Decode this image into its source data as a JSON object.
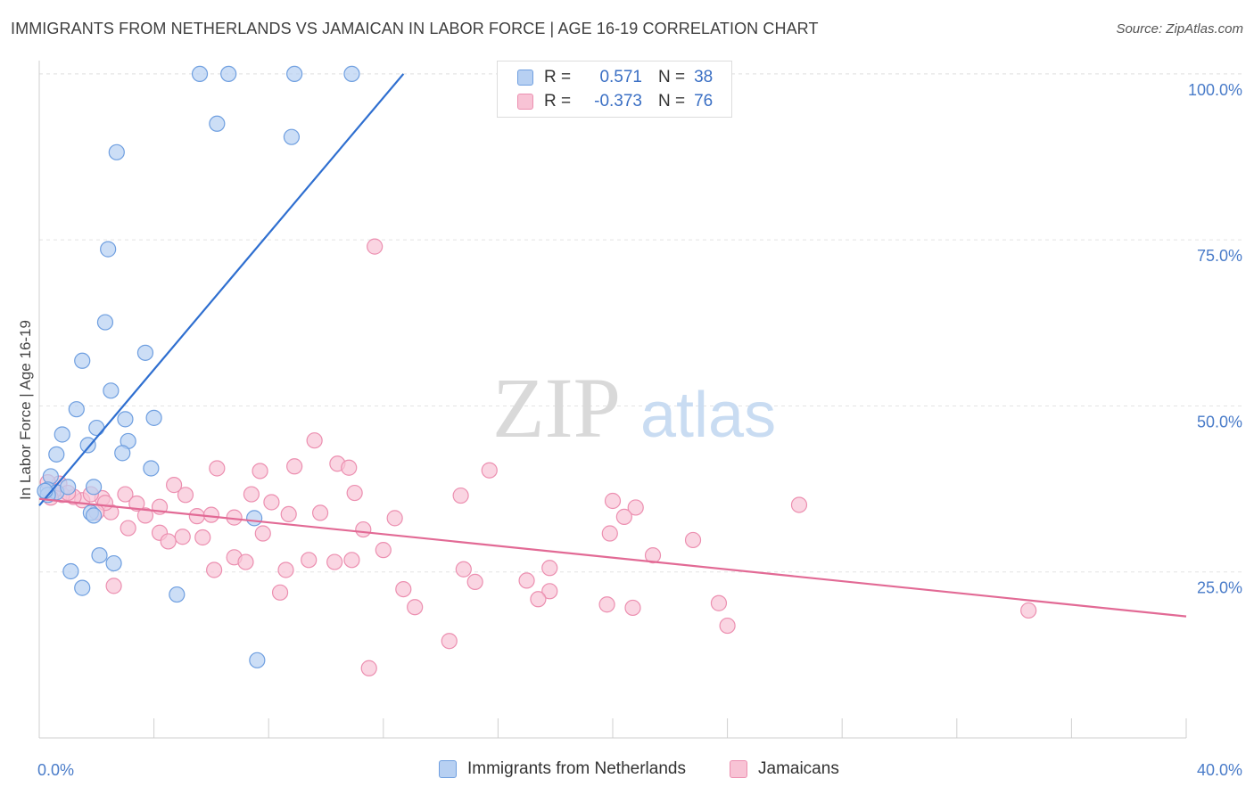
{
  "title": "IMMIGRANTS FROM NETHERLANDS VS JAMAICAN IN LABOR FORCE | AGE 16-19 CORRELATION CHART",
  "source": "Source: ZipAtlas.com",
  "watermark": {
    "part1": "ZIP",
    "part2": "atlas"
  },
  "legend": {
    "r_label": "R =",
    "n_label": "N =",
    "rows": [
      {
        "r": "0.571",
        "n": "38",
        "swatch_fill": "#b7d0f2",
        "swatch_stroke": "#6f9fe0"
      },
      {
        "r": "-0.373",
        "n": "76",
        "swatch_fill": "#f8c3d5",
        "swatch_stroke": "#ec8fb0"
      }
    ]
  },
  "colors": {
    "blue_fill": "#b7d0f2",
    "blue_stroke": "#6f9fe0",
    "blue_line": "#2f6fd0",
    "pink_fill": "#f8c3d5",
    "pink_stroke": "#ec8fb0",
    "pink_line": "#e26a95",
    "grid": "#e3e3e3",
    "tick_label": "#4a7cc9"
  },
  "chart_data": {
    "type": "scatter",
    "title": "IMMIGRANTS FROM NETHERLANDS VS JAMAICAN IN LABOR FORCE | AGE 16-19 CORRELATION CHART",
    "xlabel": "",
    "ylabel": "In Labor Force | Age 16-19",
    "xlim": [
      0,
      40
    ],
    "ylim": [
      0,
      102
    ],
    "x_tick_labels": [
      {
        "value": 0,
        "label": "0.0%"
      },
      {
        "value": 40,
        "label": "40.0%"
      }
    ],
    "x_minor_ticks": [
      0,
      4,
      8,
      12,
      16,
      20,
      24,
      28,
      32,
      36,
      40
    ],
    "y_ticks": [
      {
        "value": 25,
        "label": "25.0%"
      },
      {
        "value": 50,
        "label": "50.0%"
      },
      {
        "value": 75,
        "label": "75.0%"
      },
      {
        "value": 100,
        "label": "100.0%"
      }
    ],
    "grid": true,
    "legend_placement": "top-center",
    "series": [
      {
        "name": "Immigrants from Netherlands",
        "r": 0.571,
        "n": 38,
        "trend": {
          "x0": 0.0,
          "y0": 35.0,
          "x1": 12.7,
          "y1": 100.0
        },
        "points": [
          [
            5.6,
            100.0
          ],
          [
            6.6,
            100.0
          ],
          [
            8.9,
            100.0
          ],
          [
            10.9,
            100.0
          ],
          [
            6.2,
            92.5
          ],
          [
            8.8,
            90.5
          ],
          [
            2.7,
            88.2
          ],
          [
            2.4,
            73.6
          ],
          [
            2.3,
            62.6
          ],
          [
            3.7,
            58.0
          ],
          [
            1.5,
            56.8
          ],
          [
            2.5,
            52.3
          ],
          [
            1.3,
            49.5
          ],
          [
            3.0,
            48.0
          ],
          [
            4.0,
            48.2
          ],
          [
            0.8,
            45.7
          ],
          [
            2.0,
            46.7
          ],
          [
            1.7,
            44.1
          ],
          [
            3.1,
            44.7
          ],
          [
            0.6,
            42.7
          ],
          [
            2.9,
            42.9
          ],
          [
            3.9,
            40.6
          ],
          [
            0.4,
            39.4
          ],
          [
            0.3,
            37.4
          ],
          [
            0.6,
            37.0
          ],
          [
            1.0,
            37.8
          ],
          [
            1.9,
            37.8
          ],
          [
            0.3,
            36.6
          ],
          [
            0.2,
            37.2
          ],
          [
            1.8,
            33.9
          ],
          [
            1.9,
            33.5
          ],
          [
            7.5,
            33.1
          ],
          [
            2.1,
            27.5
          ],
          [
            2.6,
            26.3
          ],
          [
            1.1,
            25.1
          ],
          [
            1.5,
            22.6
          ],
          [
            4.8,
            21.6
          ],
          [
            7.6,
            11.7
          ]
        ]
      },
      {
        "name": "Jamaicans",
        "r": -0.373,
        "n": 76,
        "trend": {
          "x0": 0.0,
          "y0": 36.0,
          "x1": 40.0,
          "y1": 18.3
        },
        "points": [
          [
            11.7,
            74.0
          ],
          [
            9.6,
            44.8
          ],
          [
            10.4,
            41.3
          ],
          [
            10.8,
            40.7
          ],
          [
            8.9,
            40.9
          ],
          [
            7.7,
            40.2
          ],
          [
            6.2,
            40.6
          ],
          [
            15.7,
            40.3
          ],
          [
            4.7,
            38.1
          ],
          [
            5.1,
            36.6
          ],
          [
            7.4,
            36.7
          ],
          [
            8.1,
            35.5
          ],
          [
            11.0,
            36.9
          ],
          [
            14.7,
            36.5
          ],
          [
            20.0,
            35.7
          ],
          [
            26.5,
            35.1
          ],
          [
            3.0,
            36.7
          ],
          [
            3.4,
            35.3
          ],
          [
            4.2,
            34.8
          ],
          [
            3.7,
            33.5
          ],
          [
            2.5,
            34.0
          ],
          [
            1.5,
            35.8
          ],
          [
            2.2,
            36.1
          ],
          [
            2.3,
            35.4
          ],
          [
            1.8,
            36.7
          ],
          [
            1.2,
            36.3
          ],
          [
            0.8,
            36.6
          ],
          [
            0.5,
            37.2
          ],
          [
            0.7,
            38.3
          ],
          [
            0.3,
            38.5
          ],
          [
            5.5,
            33.4
          ],
          [
            6.0,
            33.6
          ],
          [
            6.8,
            33.2
          ],
          [
            8.7,
            33.7
          ],
          [
            9.8,
            33.9
          ],
          [
            12.4,
            33.1
          ],
          [
            20.8,
            34.7
          ],
          [
            20.4,
            33.3
          ],
          [
            3.1,
            31.6
          ],
          [
            4.2,
            30.9
          ],
          [
            5.0,
            30.3
          ],
          [
            5.7,
            30.2
          ],
          [
            7.8,
            30.8
          ],
          [
            11.3,
            31.4
          ],
          [
            19.9,
            30.8
          ],
          [
            22.8,
            29.8
          ],
          [
            4.5,
            29.6
          ],
          [
            2.6,
            22.9
          ],
          [
            12.0,
            28.3
          ],
          [
            6.8,
            27.2
          ],
          [
            7.2,
            26.5
          ],
          [
            9.4,
            26.8
          ],
          [
            10.3,
            26.5
          ],
          [
            10.9,
            26.8
          ],
          [
            6.1,
            25.3
          ],
          [
            8.6,
            25.3
          ],
          [
            14.8,
            25.4
          ],
          [
            17.8,
            25.6
          ],
          [
            21.4,
            27.5
          ],
          [
            15.2,
            23.5
          ],
          [
            17.0,
            23.7
          ],
          [
            12.7,
            22.4
          ],
          [
            8.4,
            21.9
          ],
          [
            17.8,
            22.1
          ],
          [
            17.4,
            20.9
          ],
          [
            13.1,
            19.7
          ],
          [
            19.8,
            20.1
          ],
          [
            20.7,
            19.6
          ],
          [
            23.7,
            20.3
          ],
          [
            34.5,
            19.2
          ],
          [
            24.0,
            16.9
          ],
          [
            14.3,
            14.6
          ],
          [
            11.5,
            10.5
          ],
          [
            2.0,
            34.0
          ],
          [
            1.0,
            36.9
          ],
          [
            0.4,
            36.2
          ]
        ]
      }
    ]
  },
  "bottom_legend": [
    {
      "label": "Immigrants from Netherlands"
    },
    {
      "label": "Jamaicans"
    }
  ]
}
